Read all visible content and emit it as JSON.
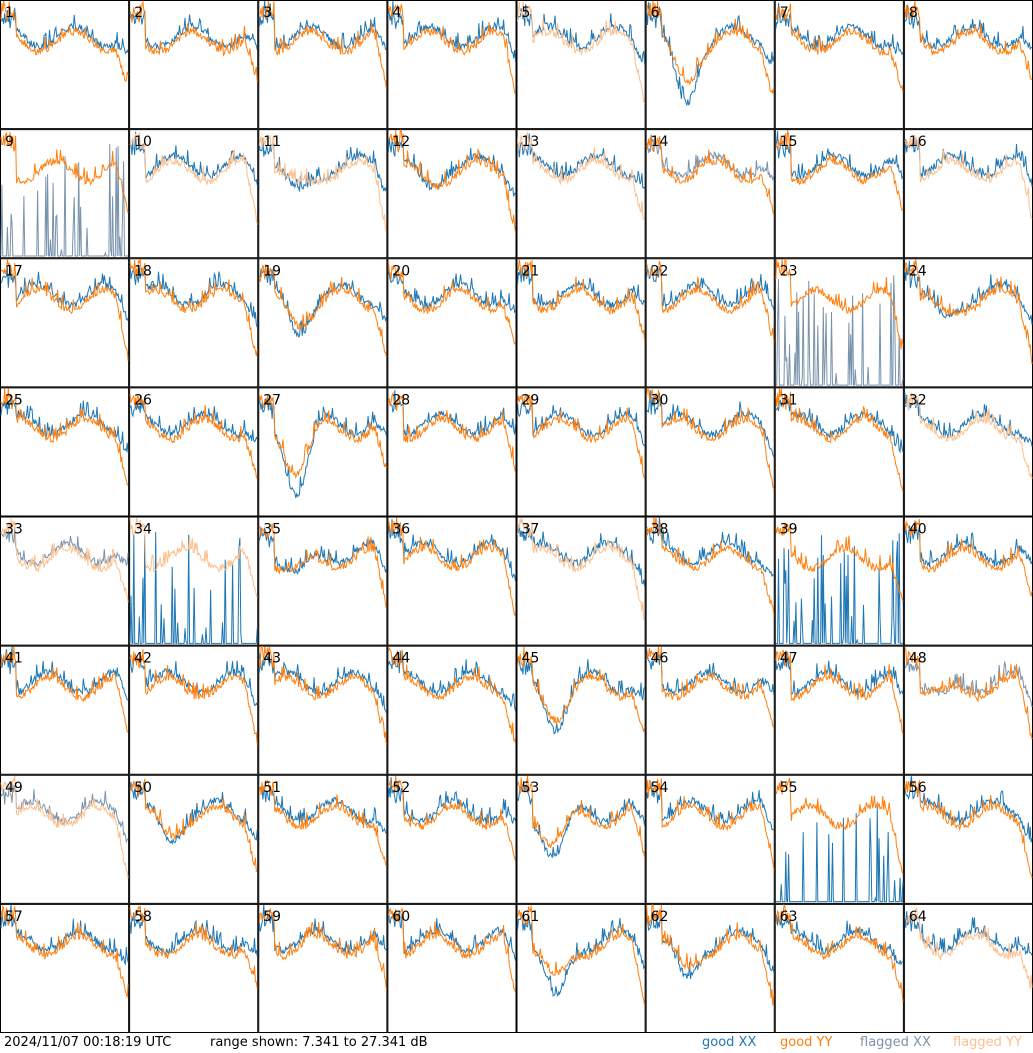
{
  "chart_data": {
    "type": "line",
    "panels": [
      {
        "label": "1"
      },
      {
        "label": "2"
      },
      {
        "label": "3"
      },
      {
        "label": "4"
      },
      {
        "label": "5"
      },
      {
        "label": "6"
      },
      {
        "label": "7"
      },
      {
        "label": "8"
      },
      {
        "label": "9"
      },
      {
        "label": "10"
      },
      {
        "label": "11"
      },
      {
        "label": "12"
      },
      {
        "label": "13"
      },
      {
        "label": "14"
      },
      {
        "label": "15"
      },
      {
        "label": "16"
      },
      {
        "label": "17"
      },
      {
        "label": "18"
      },
      {
        "label": "19"
      },
      {
        "label": "20"
      },
      {
        "label": "21"
      },
      {
        "label": "22"
      },
      {
        "label": "23"
      },
      {
        "label": "24"
      },
      {
        "label": "25"
      },
      {
        "label": "26"
      },
      {
        "label": "27"
      },
      {
        "label": "28"
      },
      {
        "label": "29"
      },
      {
        "label": "30"
      },
      {
        "label": "31"
      },
      {
        "label": "32"
      },
      {
        "label": "33"
      },
      {
        "label": "34"
      },
      {
        "label": "35"
      },
      {
        "label": "36"
      },
      {
        "label": "37"
      },
      {
        "label": "38"
      },
      {
        "label": "39"
      },
      {
        "label": "40"
      },
      {
        "label": "41"
      },
      {
        "label": "42"
      },
      {
        "label": "43"
      },
      {
        "label": "44"
      },
      {
        "label": "45"
      },
      {
        "label": "46"
      },
      {
        "label": "47"
      },
      {
        "label": "48"
      },
      {
        "label": "49"
      },
      {
        "label": "50"
      },
      {
        "label": "51"
      },
      {
        "label": "52"
      },
      {
        "label": "53"
      },
      {
        "label": "54"
      },
      {
        "label": "55"
      },
      {
        "label": "56"
      },
      {
        "label": "57"
      },
      {
        "label": "58"
      },
      {
        "label": "59"
      },
      {
        "label": "60"
      },
      {
        "label": "61"
      },
      {
        "label": "62"
      },
      {
        "label": "63"
      },
      {
        "label": "64"
      }
    ],
    "y_range_db": [
      7.341,
      27.341
    ],
    "legend": [
      {
        "key": "gx",
        "label": "good XX",
        "color": "#1f77b4"
      },
      {
        "key": "gy",
        "label": "good YY",
        "color": "#ff7f0e"
      },
      {
        "key": "fx",
        "label": "flagged XX",
        "color": "#7a93ad"
      },
      {
        "key": "fy",
        "label": "flagged YY",
        "color": "#fdbf8c"
      }
    ],
    "legend_position": "bottom-right",
    "grid": false
  },
  "footer": {
    "timestamp": "2024/11/07 00:18:19 UTC",
    "range_text": "range shown: 7.341 to 27.341 dB"
  }
}
